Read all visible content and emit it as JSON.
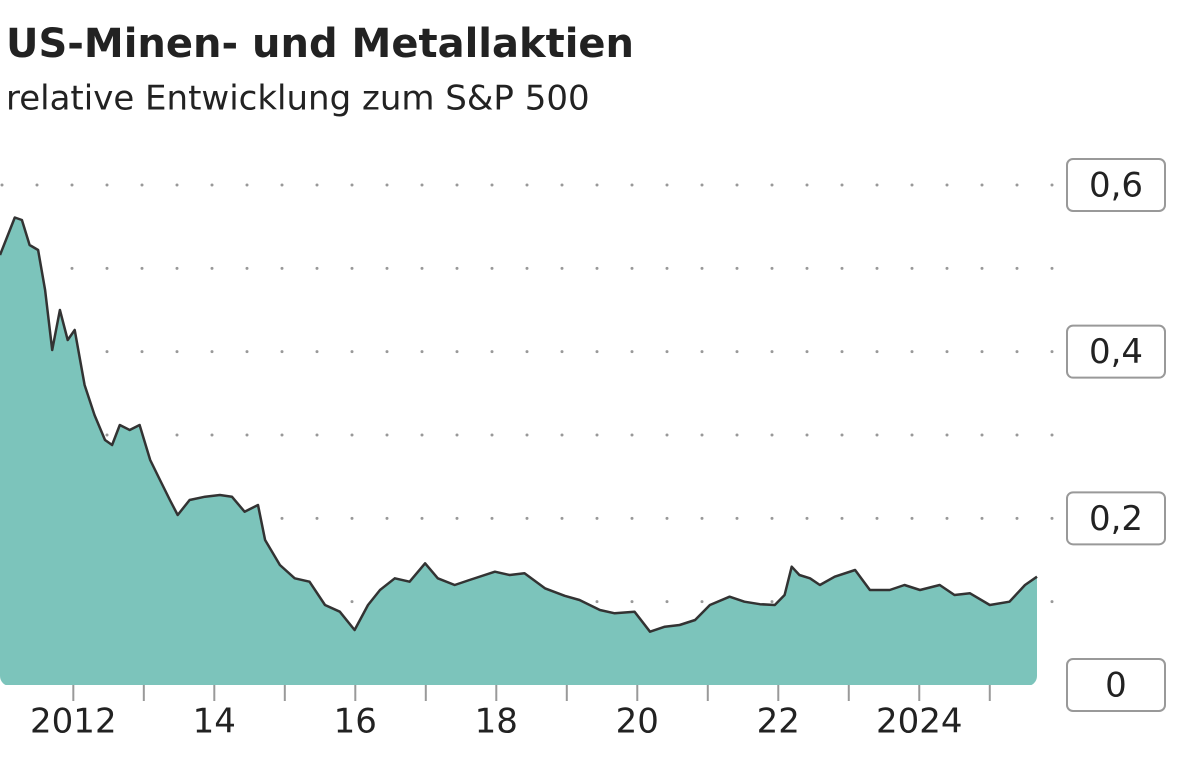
{
  "chart_data": {
    "type": "area",
    "title": "US-Minen- und Metallaktien",
    "subtitle": "relative Entwicklung zum S&P 500",
    "x": [
      2010.96,
      2011.17,
      2011.27,
      2011.38,
      2011.5,
      2011.6,
      2011.7,
      2011.81,
      2011.92,
      2012.02,
      2012.16,
      2012.3,
      2012.45,
      2012.55,
      2012.66,
      2012.8,
      2012.94,
      2013.09,
      2013.23,
      2013.37,
      2013.48,
      2013.65,
      2013.87,
      2014.08,
      2014.25,
      2014.43,
      2014.62,
      2014.72,
      2014.93,
      2015.14,
      2015.35,
      2015.57,
      2015.78,
      2015.99,
      2016.18,
      2016.35,
      2016.56,
      2016.77,
      2016.99,
      2017.17,
      2017.41,
      2017.62,
      2017.98,
      2018.19,
      2018.4,
      2018.69,
      2018.97,
      2019.18,
      2019.47,
      2019.68,
      2019.96,
      2020.18,
      2020.39,
      2020.6,
      2020.82,
      2021.03,
      2021.31,
      2021.52,
      2021.74,
      2021.95,
      2022.09,
      2022.19,
      2022.3,
      2022.45,
      2022.59,
      2022.8,
      2023.09,
      2023.3,
      2023.58,
      2023.79,
      2024.01,
      2024.29,
      2024.5,
      2024.72,
      2025.0,
      2025.28,
      2025.5,
      2025.67
    ],
    "values": [
      0.516,
      0.561,
      0.558,
      0.528,
      0.522,
      0.474,
      0.402,
      0.45,
      0.414,
      0.426,
      0.36,
      0.324,
      0.294,
      0.288,
      0.312,
      0.306,
      0.312,
      0.27,
      0.246,
      0.222,
      0.204,
      0.222,
      0.226,
      0.228,
      0.226,
      0.208,
      0.216,
      0.174,
      0.144,
      0.128,
      0.124,
      0.096,
      0.088,
      0.066,
      0.096,
      0.114,
      0.128,
      0.124,
      0.146,
      0.128,
      0.12,
      0.126,
      0.136,
      0.132,
      0.134,
      0.116,
      0.107,
      0.102,
      0.09,
      0.086,
      0.088,
      0.064,
      0.07,
      0.072,
      0.078,
      0.096,
      0.106,
      0.1,
      0.097,
      0.096,
      0.108,
      0.142,
      0.132,
      0.128,
      0.12,
      0.13,
      0.138,
      0.114,
      0.114,
      0.12,
      0.114,
      0.12,
      0.108,
      0.11,
      0.096,
      0.1,
      0.12,
      0.13
    ],
    "color": "#7cc4bb",
    "line_color": "#333333",
    "xlim": [
      2010.96,
      2025.67
    ],
    "xticks": [
      {
        "value": 2012,
        "label": "2012"
      },
      {
        "value": 2014,
        "label": "14"
      },
      {
        "value": 2016,
        "label": "16"
      },
      {
        "value": 2018,
        "label": "18"
      },
      {
        "value": 2020,
        "label": "20"
      },
      {
        "value": 2022,
        "label": "22"
      },
      {
        "value": 2024,
        "label": "2024"
      }
    ],
    "xminor_ticks": [
      2013,
      2015,
      2017,
      2019,
      2021,
      2023,
      2025
    ],
    "ylim": [
      0,
      0.6
    ],
    "yticks": [
      {
        "value": 0,
        "label": "0"
      },
      {
        "value": 0.2,
        "label": "0,2"
      },
      {
        "value": 0.4,
        "label": "0,4"
      },
      {
        "value": 0.6,
        "label": "0,6"
      }
    ],
    "grid_lines": [
      0.1,
      0.2,
      0.3,
      0.4,
      0.5,
      0.6
    ]
  }
}
